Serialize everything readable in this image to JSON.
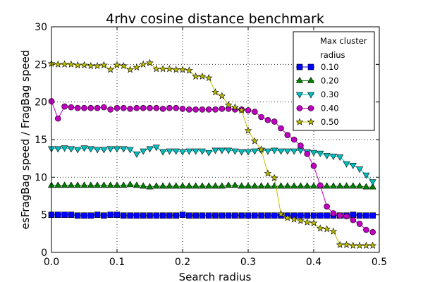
{
  "chart_data": {
    "type": "line",
    "title": "4rhv cosine distance benchmark",
    "x_label": "Search radius",
    "y_label": "esFragBag speed / FragBag speed",
    "legend_title": "Max cluster radius",
    "legend_position": "upper right",
    "grid": true,
    "xlim": [
      0,
      0.5
    ],
    "ylim": [
      0,
      30
    ],
    "xticks": [
      {
        "value": 0,
        "label": "0.0"
      },
      0.1,
      0.2,
      0.3,
      0.4,
      0.5
    ],
    "yticks": [
      0,
      5,
      10,
      15,
      20,
      25,
      30
    ],
    "x": [
      0,
      0.01,
      0.02,
      0.03,
      0.04,
      0.05,
      0.06,
      0.07,
      0.08,
      0.09,
      0.1,
      0.11,
      0.12,
      0.13,
      0.14,
      0.15,
      0.16,
      0.17,
      0.18,
      0.19,
      0.2,
      0.21,
      0.22,
      0.23,
      0.24,
      0.25,
      0.26,
      0.27,
      0.28,
      0.29,
      0.3,
      0.31,
      0.32,
      0.33,
      0.34,
      0.35,
      0.36,
      0.37,
      0.38,
      0.39,
      0.4,
      0.41,
      0.42,
      0.43,
      0.44,
      0.45,
      0.46,
      0.47,
      0.48,
      0.49
    ],
    "series": [
      {
        "name": "0.10",
        "color": "#0000ff",
        "marker": "square",
        "values": [
          5.0,
          5.0,
          5.0,
          5.0,
          4.9,
          4.9,
          4.9,
          5.0,
          4.9,
          5.0,
          5.0,
          4.9,
          4.9,
          4.9,
          4.9,
          4.9,
          4.9,
          4.9,
          4.9,
          4.9,
          5.0,
          4.9,
          4.9,
          4.9,
          4.9,
          4.9,
          4.9,
          4.9,
          4.9,
          4.9,
          4.9,
          4.9,
          4.9,
          4.9,
          4.9,
          4.9,
          4.9,
          4.9,
          4.9,
          4.9,
          4.9,
          4.9,
          4.9,
          4.9,
          4.9,
          4.9,
          5.0,
          4.9,
          4.9,
          4.9
        ]
      },
      {
        "name": "0.20",
        "color": "#008000",
        "marker": "triangle-up",
        "values": [
          8.9,
          8.9,
          8.9,
          8.9,
          8.9,
          8.9,
          8.9,
          8.9,
          8.9,
          8.9,
          8.9,
          8.9,
          9.0,
          8.9,
          8.8,
          8.7,
          8.8,
          8.8,
          8.8,
          8.8,
          8.8,
          8.8,
          8.8,
          8.8,
          8.8,
          8.8,
          8.8,
          8.9,
          8.9,
          8.8,
          8.8,
          8.8,
          8.8,
          8.8,
          8.8,
          8.8,
          8.8,
          8.8,
          8.8,
          8.8,
          8.8,
          8.8,
          8.8,
          8.8,
          8.8,
          8.8,
          8.8,
          8.8,
          8.7,
          8.7
        ]
      },
      {
        "name": "0.30",
        "color": "#00bfbf",
        "marker": "triangle-down",
        "values": [
          13.8,
          13.8,
          13.9,
          13.8,
          13.7,
          13.9,
          13.8,
          13.7,
          13.7,
          13.8,
          13.8,
          13.8,
          13.7,
          13.1,
          13.5,
          13.8,
          14.0,
          13.4,
          13.5,
          13.5,
          13.4,
          13.5,
          13.5,
          13.5,
          13.3,
          13.6,
          13.6,
          13.6,
          13.5,
          13.4,
          13.4,
          13.5,
          13.6,
          13.5,
          13.6,
          13.5,
          13.5,
          13.5,
          13.6,
          13.4,
          13.3,
          13.2,
          12.9,
          12.8,
          12.7,
          11.8,
          11.6,
          11.1,
          10.3,
          9.4
        ]
      },
      {
        "name": "0.40",
        "color": "#bf00bf",
        "marker": "circle",
        "values": [
          20.1,
          17.8,
          19.4,
          19.3,
          19.2,
          19.2,
          19.2,
          19.2,
          19.3,
          19.0,
          19.2,
          19.2,
          19.1,
          19.2,
          19.2,
          19.2,
          19.2,
          19.1,
          19.2,
          19.2,
          19.1,
          19.0,
          19.0,
          19.0,
          19.0,
          19.0,
          19.1,
          19.1,
          19.0,
          19.0,
          18.9,
          18.7,
          18.0,
          17.6,
          17.4,
          16.5,
          15.6,
          15.0,
          14.2,
          13.1,
          11.5,
          8.9,
          6.1,
          5.2,
          4.9,
          4.8,
          4.3,
          3.8,
          3.0,
          2.7
        ]
      },
      {
        "name": "0.50",
        "color": "#bfbf00",
        "marker": "star",
        "values": [
          25.1,
          25.0,
          25.0,
          25.0,
          24.9,
          24.9,
          24.8,
          24.8,
          24.9,
          24.3,
          24.9,
          24.8,
          24.3,
          24.6,
          25.0,
          25.2,
          24.4,
          24.4,
          24.4,
          24.3,
          24.3,
          24.2,
          23.4,
          23.4,
          23.2,
          21.3,
          20.8,
          19.6,
          19.3,
          18.9,
          16.2,
          14.8,
          13.7,
          10.5,
          9.9,
          5.1,
          4.6,
          4.4,
          4.2,
          4.0,
          3.9,
          3.2,
          3.1,
          2.8,
          1.0,
          1.0,
          0.9,
          0.9,
          0.9,
          0.9
        ]
      }
    ]
  }
}
